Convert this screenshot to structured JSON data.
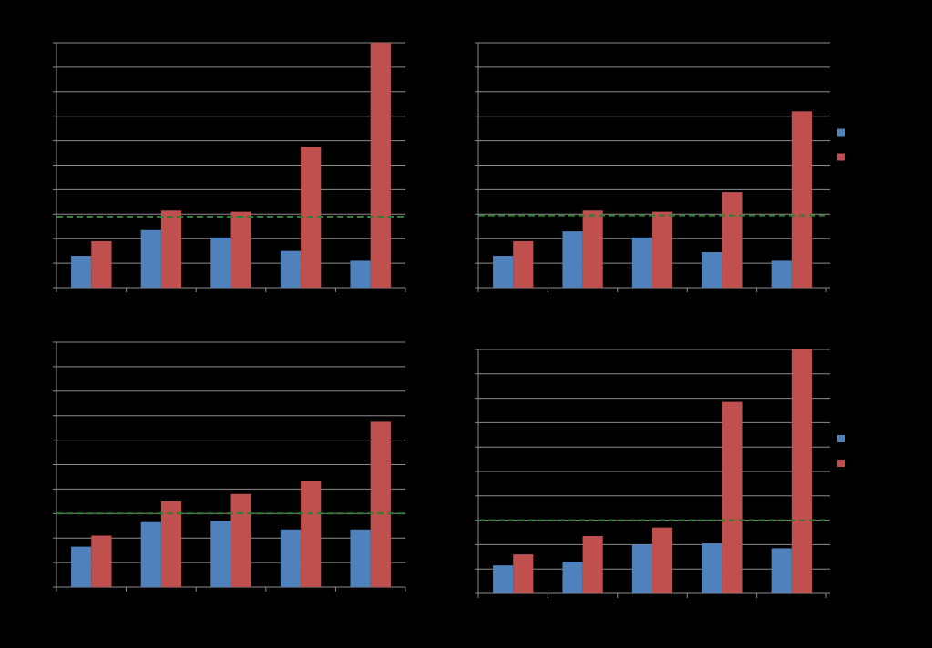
{
  "colors": {
    "background": "#000000",
    "series_a": "#4F81BD",
    "series_b": "#C0504D",
    "reference_line": "#2E7D32",
    "gridline": "#8C8C8C",
    "axis": "#8C8C8C"
  },
  "chart_data": [
    {
      "type": "bar",
      "panel": "top-left",
      "categories": [
        "",
        "",
        "",
        "",
        ""
      ],
      "ylim": [
        0,
        10
      ],
      "grid": true,
      "legend": "none",
      "series": [
        {
          "values": [
            1.3,
            2.35,
            2.05,
            1.5,
            1.1
          ]
        },
        {
          "values": [
            1.9,
            3.15,
            3.1,
            5.75,
            10.0
          ]
        }
      ],
      "reference_line": 2.9
    },
    {
      "type": "bar",
      "panel": "top-right",
      "categories": [
        "",
        "",
        "",
        "",
        ""
      ],
      "ylim": [
        0,
        10
      ],
      "grid": true,
      "legend": "right",
      "series": [
        {
          "values": [
            1.3,
            2.3,
            2.05,
            1.45,
            1.1
          ]
        },
        {
          "values": [
            1.9,
            3.15,
            3.1,
            3.9,
            7.2
          ]
        }
      ],
      "reference_line": 2.95
    },
    {
      "type": "bar",
      "panel": "bottom-left",
      "categories": [
        "",
        "",
        "",
        "",
        ""
      ],
      "ylim": [
        0,
        10
      ],
      "grid": true,
      "legend": "none",
      "series": [
        {
          "values": [
            1.65,
            2.65,
            2.7,
            2.35,
            2.35
          ]
        },
        {
          "values": [
            2.1,
            3.5,
            3.8,
            4.35,
            6.75
          ]
        }
      ],
      "reference_line": 3.0
    },
    {
      "type": "bar",
      "panel": "bottom-right",
      "categories": [
        "",
        "",
        "",
        "",
        ""
      ],
      "ylim": [
        0,
        10
      ],
      "grid": true,
      "legend": "right",
      "series": [
        {
          "values": [
            1.15,
            1.3,
            2.0,
            2.05,
            1.85
          ]
        },
        {
          "values": [
            1.6,
            2.35,
            2.7,
            7.85,
            10.0
          ]
        }
      ],
      "reference_line": 3.0
    }
  ]
}
